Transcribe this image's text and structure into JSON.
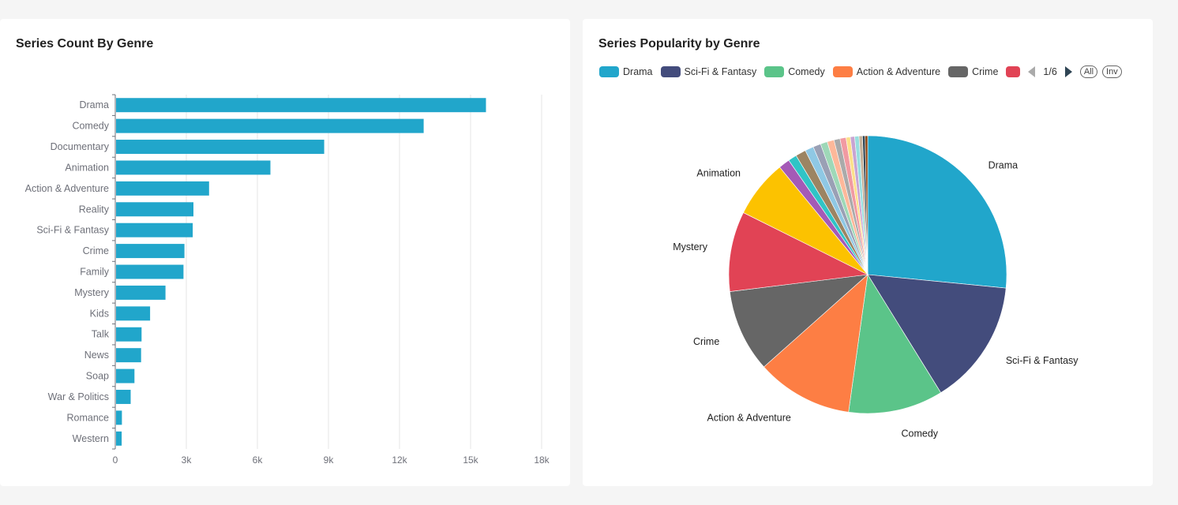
{
  "bar_card": {
    "title": "Series Count By Genre"
  },
  "pie_card": {
    "title": "Series Popularity by Genre",
    "legend": {
      "page": "1/6",
      "all_label": "All",
      "inv_label": "Inv"
    }
  },
  "chart_data": [
    {
      "type": "bar",
      "orientation": "horizontal",
      "title": "Series Count By Genre",
      "categories": [
        "Drama",
        "Comedy",
        "Documentary",
        "Animation",
        "Action & Adventure",
        "Reality",
        "Sci-Fi & Fantasy",
        "Crime",
        "Family",
        "Mystery",
        "Kids",
        "Talk",
        "News",
        "Soap",
        "War & Politics",
        "Romance",
        "Western"
      ],
      "values": [
        15650,
        13020,
        8820,
        6550,
        3960,
        3300,
        3270,
        2920,
        2880,
        2120,
        1470,
        1110,
        1090,
        810,
        650,
        280,
        270
      ],
      "xlim": [
        0,
        18000
      ],
      "xticks": [
        "0",
        "3k",
        "6k",
        "9k",
        "12k",
        "15k",
        "18k"
      ],
      "grid": "vertical",
      "color": "#21a6cb"
    },
    {
      "type": "pie",
      "title": "Series Popularity by Genre",
      "legend_placement": "top",
      "legend_visible": [
        "Drama",
        "Sci-Fi & Fantasy",
        "Comedy",
        "Action & Adventure",
        "Crime"
      ],
      "slices": [
        {
          "label": "Drama",
          "value": 26.5,
          "color": "#21a6cb",
          "show_label": true
        },
        {
          "label": "Sci-Fi & Fantasy",
          "value": 14.6,
          "color": "#434c7c",
          "show_label": true
        },
        {
          "label": "Comedy",
          "value": 11.0,
          "color": "#5bc489",
          "show_label": true
        },
        {
          "label": "Action & Adventure",
          "value": 11.2,
          "color": "#fd7e44",
          "show_label": true
        },
        {
          "label": "Crime",
          "value": 9.6,
          "color": "#666666",
          "show_label": true
        },
        {
          "label": "Mystery",
          "value": 9.3,
          "color": "#e14355",
          "show_label": true
        },
        {
          "label": "Animation",
          "value": 6.7,
          "color": "#fcc200",
          "show_label": true
        },
        {
          "label": "",
          "value": 1.3,
          "color": "#a45ab6"
        },
        {
          "label": "",
          "value": 1.0,
          "color": "#30c4c6"
        },
        {
          "label": "",
          "value": 1.2,
          "color": "#9c8462"
        },
        {
          "label": "",
          "value": 1.0,
          "color": "#8fc8e4"
        },
        {
          "label": "",
          "value": 0.9,
          "color": "#9aa0b5"
        },
        {
          "label": "",
          "value": 0.8,
          "color": "#9ed8b8"
        },
        {
          "label": "",
          "value": 0.8,
          "color": "#fdb89a"
        },
        {
          "label": "",
          "value": 0.7,
          "color": "#aaaaaa"
        },
        {
          "label": "",
          "value": 0.7,
          "color": "#f19aa2"
        },
        {
          "label": "",
          "value": 0.5,
          "color": "#fce08a"
        },
        {
          "label": "",
          "value": 0.5,
          "color": "#c8a4d2"
        },
        {
          "label": "",
          "value": 0.5,
          "color": "#98dede"
        },
        {
          "label": "",
          "value": 0.4,
          "color": "#c4b098"
        },
        {
          "label": "",
          "value": 0.3,
          "color": "#2f4554"
        },
        {
          "label": "",
          "value": 0.3,
          "color": "#8b4513"
        }
      ]
    }
  ]
}
